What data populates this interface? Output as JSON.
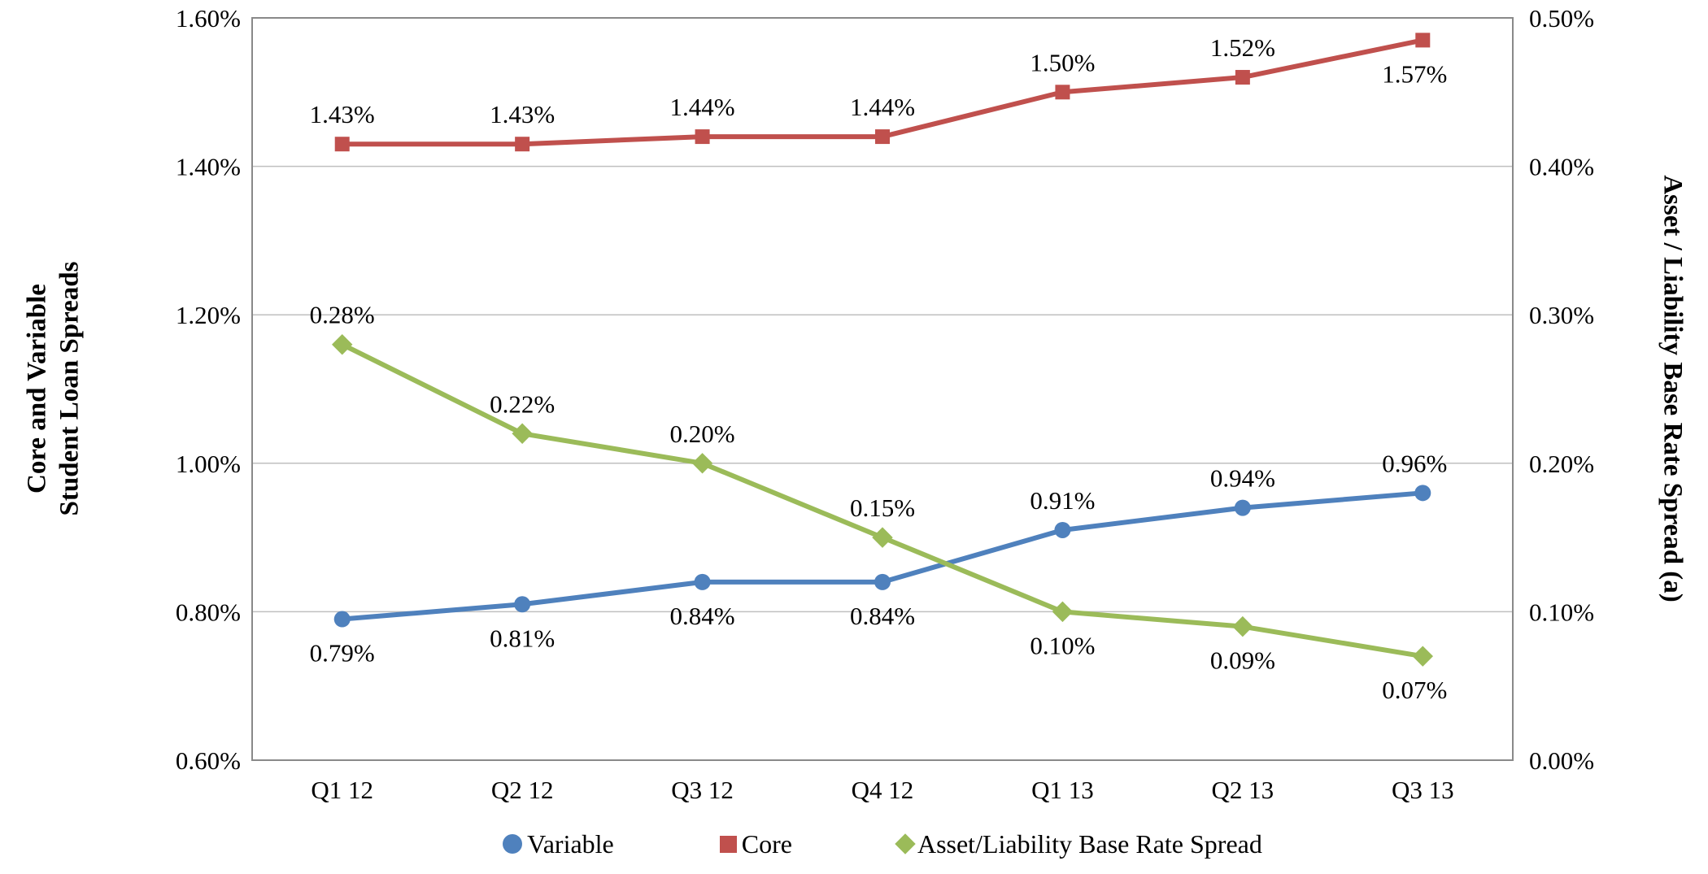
{
  "chart_data": {
    "type": "line",
    "categories": [
      "Q1 12",
      "Q2 12",
      "Q3 12",
      "Q4 12",
      "Q1 13",
      "Q2 13",
      "Q3 13"
    ],
    "series": [
      {
        "name": "Variable",
        "axis": "left",
        "color": "#4F81BD",
        "marker": "circle",
        "values": [
          0.79,
          0.81,
          0.84,
          0.84,
          0.91,
          0.94,
          0.96
        ],
        "labels": [
          "0.79%",
          "0.81%",
          "0.84%",
          "0.84%",
          "0.91%",
          "0.94%",
          "0.96%"
        ],
        "label_positions": [
          "below",
          "below",
          "below",
          "below",
          "above",
          "above",
          "above"
        ]
      },
      {
        "name": "Core",
        "axis": "left",
        "color": "#C0504D",
        "marker": "square",
        "values": [
          1.43,
          1.43,
          1.44,
          1.44,
          1.5,
          1.52,
          1.57
        ],
        "labels": [
          "1.43%",
          "1.43%",
          "1.44%",
          "1.44%",
          "1.50%",
          "1.52%",
          "1.57%"
        ],
        "label_positions": [
          "above",
          "above",
          "above",
          "above",
          "above",
          "above",
          "below"
        ]
      },
      {
        "name": "Asset/Liability Base Rate Spread",
        "axis": "right",
        "color": "#9BBB59",
        "marker": "diamond",
        "values": [
          0.28,
          0.22,
          0.2,
          0.15,
          0.1,
          0.09,
          0.07
        ],
        "labels": [
          "0.28%",
          "0.22%",
          "0.20%",
          "0.15%",
          "0.10%",
          "0.09%",
          "0.07%"
        ],
        "label_positions": [
          "above",
          "above",
          "above",
          "above",
          "below",
          "below",
          "below"
        ]
      }
    ],
    "left_axis": {
      "title_lines": [
        "Core and Variable",
        "Student Loan Spreads"
      ],
      "min": 0.6,
      "max": 1.6,
      "tick_values": [
        1.6,
        1.4,
        1.2,
        1.0,
        0.8,
        0.6
      ],
      "ticks": [
        "1.60%",
        "1.40%",
        "1.20%",
        "1.00%",
        "0.80%",
        "0.60%"
      ]
    },
    "right_axis": {
      "title": "Asset / Liability Base Rate Spread (a)",
      "min": 0.0,
      "max": 0.5,
      "tick_values": [
        0.5,
        0.4,
        0.3,
        0.2,
        0.1,
        0.0
      ],
      "ticks": [
        "0.50%",
        "0.40%",
        "0.30%",
        "0.20%",
        "0.10%",
        "0.00%"
      ]
    },
    "grid": true,
    "legend_position": "bottom",
    "colors": {
      "gridline": "#BFBFBF",
      "plot_border": "#898989"
    }
  }
}
